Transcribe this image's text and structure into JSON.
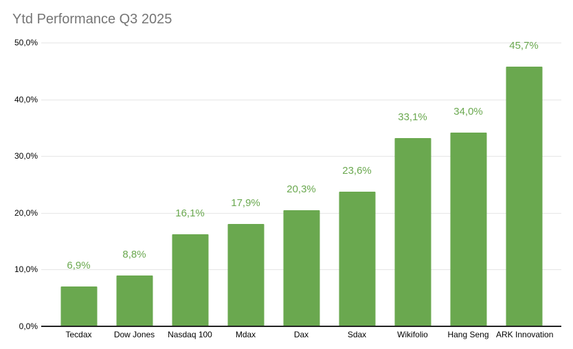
{
  "chart_data": {
    "type": "bar",
    "title": "Ytd Performance Q3 2025",
    "categories": [
      "Tecdax",
      "Dow Jones",
      "Nasdaq 100",
      "Mdax",
      "Dax",
      "Sdax",
      "Wikifolio",
      "Hang Seng",
      "ARK Innovation"
    ],
    "values": [
      6.9,
      8.8,
      16.1,
      17.9,
      20.3,
      23.6,
      33.1,
      34.0,
      45.7
    ],
    "value_labels": [
      "6,9%",
      "8,8%",
      "16,1%",
      "17,9%",
      "20,3%",
      "23,6%",
      "33,1%",
      "34,0%",
      "45,7%"
    ],
    "y_ticks": [
      {
        "value": 0,
        "label": "0,0%"
      },
      {
        "value": 10,
        "label": "10,0%"
      },
      {
        "value": 20,
        "label": "20,0%"
      },
      {
        "value": 30,
        "label": "30,0%"
      },
      {
        "value": 40,
        "label": "40,0%"
      },
      {
        "value": 50,
        "label": "50,0%"
      }
    ],
    "ylim": [
      0,
      50
    ],
    "xlabel": "",
    "ylabel": "",
    "grid": true,
    "legend": "none",
    "colors": {
      "bar": "#6aa84f",
      "annotation": "#6aa84f",
      "title": "#757575",
      "axis_text": "#000000",
      "gridline": "#e6e6e6",
      "baseline": "#212121",
      "background": "#ffffff"
    }
  }
}
